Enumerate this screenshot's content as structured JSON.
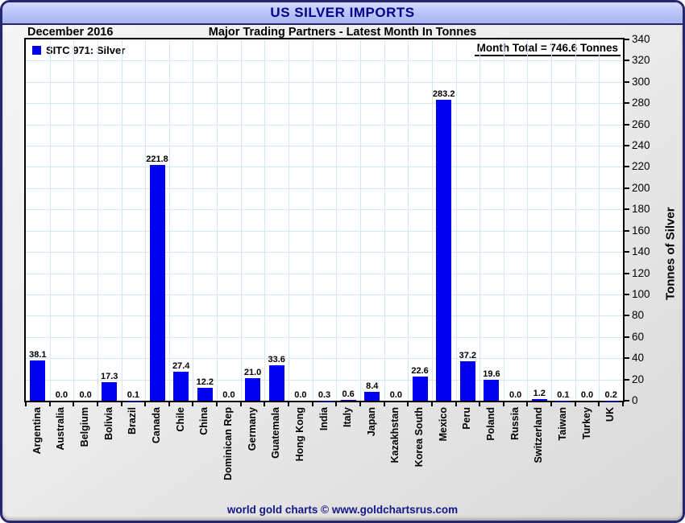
{
  "window_title": "US SILVER IMPORTS",
  "header": {
    "period": "December 2016",
    "subtitle": "Major Trading Partners - Latest Month In Tonnes"
  },
  "legend": {
    "series_label": "SITC 971: Silver"
  },
  "month_total_label": "Month Total = 746.6 Tonnes",
  "footer": {
    "credit": "world gold charts © www.goldchartsrus.com"
  },
  "colors": {
    "bar": "#0000ee",
    "title_text": "#00008b",
    "frame_border": "#26266e",
    "gridline": "#d8e6f3",
    "footer_text": "#15158a"
  },
  "chart_data": {
    "type": "bar",
    "title": "US SILVER IMPORTS",
    "subtitle": "Major Trading Partners - Latest Month In Tonnes",
    "period": "December 2016",
    "month_total_tonnes": 746.6,
    "categories": [
      "Argentina",
      "Australia",
      "Belgium",
      "Bolivia",
      "Brazil",
      "Canada",
      "Chile",
      "China",
      "Dominican Rep",
      "Germany",
      "Guatemala",
      "Hong Kong",
      "India",
      "Italy",
      "Japan",
      "Kazakhstan",
      "Korea South",
      "Mexico",
      "Peru",
      "Poland",
      "Russia",
      "Switzerland",
      "Taiwan",
      "Turkey",
      "UK"
    ],
    "series": [
      {
        "name": "SITC 971: Silver",
        "values": [
          38.1,
          0.0,
          0.0,
          17.3,
          0.1,
          221.8,
          27.4,
          12.2,
          0.0,
          21.0,
          33.6,
          0.0,
          0.3,
          0.6,
          8.4,
          0.0,
          22.6,
          283.2,
          37.2,
          19.6,
          0.0,
          1.2,
          0.1,
          0.0,
          0.2
        ]
      }
    ],
    "xlabel": "",
    "ylabel": "Tonnes of Silver",
    "ylim": [
      0,
      340
    ],
    "ytick_step": 20,
    "grid": true,
    "legend_position": "top-left",
    "value_labels_decimals": 1
  }
}
